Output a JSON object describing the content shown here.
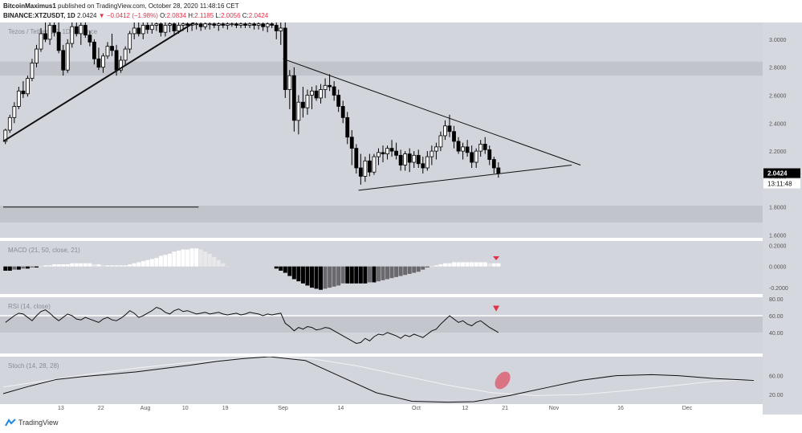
{
  "header": {
    "author": "BitcoinMaximus1",
    "published": " published on TradingView.com, October 28, 2020 11:48:16 CET",
    "symbol": "BINANCE:XTZUSDT, 1D",
    "price": "2.0424",
    "change": "▼ −0.0412 (−1.98%)",
    "ohlc_o_label": "O:",
    "ohlc_o": "2.0834",
    "ohlc_h_label": "H:",
    "ohlc_h": "2.1185",
    "ohlc_l_label": "L:",
    "ohlc_l": "2.0056",
    "ohlc_c_label": "C:",
    "ohlc_c": "2.0424"
  },
  "footer": {
    "brand": "TradingView"
  },
  "colors": {
    "background": "#ffffff",
    "pane": "#d3d5dd",
    "zone": "#c2c4cc",
    "red": "#e0334b",
    "line": "#111111"
  },
  "indicators": {
    "price_label": "Tezos / Tether US, 1D, Binance",
    "macd_label": "MACD (21, 50, close, 21)",
    "rsi_label": "RSI (14, close)",
    "stoch_label": "Stoch (14, 28, 28)"
  },
  "chart_data": [
    {
      "type": "candlestick",
      "title": "Tezos / Tether US, 1D, Binance",
      "ylim": [
        1.58,
        3.12
      ],
      "y_ticks": [
        "3.0000",
        "2.8000",
        "2.6000",
        "2.4000",
        "2.2000",
        "2.0000",
        "1.8000",
        "1.6000"
      ],
      "last_price": "2.0424",
      "countdown": "13:11:48",
      "x_ticks": [
        {
          "label": "13",
          "day": 13
        },
        {
          "label": "22",
          "day": 22
        },
        {
          "label": "Aug",
          "day": 32
        },
        {
          "label": "10",
          "day": 41
        },
        {
          "label": "19",
          "day": 50
        },
        {
          "label": "Sep",
          "day": 63
        },
        {
          "label": "14",
          "day": 76
        },
        {
          "label": "Oct",
          "day": 93
        },
        {
          "label": "12",
          "day": 104
        },
        {
          "label": "21",
          "day": 113
        },
        {
          "label": "Nov",
          "day": 124
        },
        {
          "label": "16",
          "day": 139
        },
        {
          "label": "Dec",
          "day": 154
        }
      ],
      "ohlc": [
        [
          2.27,
          2.36,
          2.25,
          2.35
        ],
        [
          2.35,
          2.46,
          2.33,
          2.44
        ],
        [
          2.44,
          2.55,
          2.4,
          2.52
        ],
        [
          2.52,
          2.66,
          2.5,
          2.63
        ],
        [
          2.63,
          2.7,
          2.58,
          2.61
        ],
        [
          2.61,
          2.74,
          2.59,
          2.72
        ],
        [
          2.72,
          2.86,
          2.7,
          2.83
        ],
        [
          2.83,
          2.96,
          2.8,
          2.93
        ],
        [
          2.93,
          3.08,
          2.91,
          3.04
        ],
        [
          3.04,
          3.12,
          2.98,
          3.0
        ],
        [
          3.0,
          3.12,
          2.96,
          3.1
        ],
        [
          3.1,
          3.12,
          3.02,
          3.05
        ],
        [
          3.05,
          3.12,
          2.9,
          2.92
        ],
        [
          2.92,
          2.96,
          2.74,
          2.78
        ],
        [
          2.78,
          3.0,
          2.76,
          2.97
        ],
        [
          2.97,
          3.12,
          2.94,
          3.09
        ],
        [
          3.09,
          3.12,
          3.02,
          3.04
        ],
        [
          3.04,
          3.12,
          2.96,
          3.1
        ],
        [
          3.1,
          3.12,
          3.01,
          3.03
        ],
        [
          3.03,
          3.06,
          2.95,
          2.98
        ],
        [
          2.98,
          3.0,
          2.82,
          2.86
        ],
        [
          2.86,
          2.94,
          2.78,
          2.8
        ],
        [
          2.8,
          2.9,
          2.76,
          2.88
        ],
        [
          2.88,
          2.98,
          2.86,
          2.95
        ],
        [
          2.95,
          3.04,
          2.88,
          2.92
        ],
        [
          2.92,
          2.96,
          2.74,
          2.78
        ],
        [
          2.78,
          2.88,
          2.76,
          2.85
        ],
        [
          2.85,
          2.95,
          2.82,
          2.93
        ],
        [
          2.93,
          3.06,
          2.9,
          3.04
        ],
        [
          3.04,
          3.12,
          3.0,
          3.08
        ],
        [
          3.08,
          3.12,
          3.02,
          3.04
        ],
        [
          3.04,
          3.12,
          3.0,
          3.1
        ],
        [
          3.1,
          3.12,
          3.04,
          3.07
        ],
        [
          3.07,
          3.12,
          3.04,
          3.1
        ],
        [
          3.1,
          3.12,
          3.06,
          3.11
        ],
        [
          3.11,
          3.12,
          3.02,
          3.05
        ],
        [
          3.05,
          3.12,
          3.02,
          3.1
        ],
        [
          3.1,
          3.12,
          3.05,
          3.11
        ],
        [
          3.11,
          3.12,
          3.03,
          3.06
        ],
        [
          3.06,
          3.12,
          3.04,
          3.1
        ],
        [
          3.1,
          3.12,
          3.06,
          3.11
        ],
        [
          3.11,
          3.12,
          3.05,
          3.1
        ],
        [
          3.1,
          3.12,
          3.06,
          3.11
        ],
        [
          3.11,
          3.12,
          3.07,
          3.11
        ],
        [
          3.11,
          3.12,
          3.06,
          3.09
        ],
        [
          3.09,
          3.12,
          3.07,
          3.11
        ],
        [
          3.11,
          3.12,
          3.07,
          3.11
        ],
        [
          3.11,
          3.12,
          3.08,
          3.1
        ],
        [
          3.1,
          3.12,
          3.06,
          3.11
        ],
        [
          3.11,
          3.12,
          3.08,
          3.1
        ],
        [
          3.1,
          3.12,
          3.07,
          3.11
        ],
        [
          3.11,
          3.12,
          3.09,
          3.11
        ],
        [
          3.11,
          3.12,
          3.08,
          3.1
        ],
        [
          3.1,
          3.12,
          3.08,
          3.11
        ],
        [
          3.11,
          3.12,
          3.08,
          3.1
        ],
        [
          3.1,
          3.12,
          3.08,
          3.11
        ],
        [
          3.11,
          3.12,
          3.07,
          3.1
        ],
        [
          3.1,
          3.12,
          3.07,
          3.11
        ],
        [
          3.11,
          3.12,
          3.06,
          3.09
        ],
        [
          3.09,
          3.12,
          3.05,
          3.11
        ],
        [
          3.11,
          3.12,
          3.08,
          3.1
        ],
        [
          3.1,
          3.12,
          3.0,
          3.06
        ],
        [
          3.06,
          3.12,
          2.96,
          3.08
        ],
        [
          3.08,
          3.12,
          2.58,
          2.64
        ],
        [
          2.64,
          2.78,
          2.5,
          2.74
        ],
        [
          2.74,
          2.8,
          2.34,
          2.42
        ],
        [
          2.42,
          2.6,
          2.32,
          2.55
        ],
        [
          2.55,
          2.66,
          2.44,
          2.51
        ],
        [
          2.51,
          2.64,
          2.46,
          2.6
        ],
        [
          2.6,
          2.66,
          2.5,
          2.63
        ],
        [
          2.63,
          2.67,
          2.56,
          2.58
        ],
        [
          2.58,
          2.68,
          2.54,
          2.64
        ],
        [
          2.64,
          2.72,
          2.58,
          2.67
        ],
        [
          2.67,
          2.75,
          2.63,
          2.66
        ],
        [
          2.66,
          2.7,
          2.56,
          2.6
        ],
        [
          2.6,
          2.64,
          2.48,
          2.52
        ],
        [
          2.52,
          2.56,
          2.4,
          2.44
        ],
        [
          2.44,
          2.48,
          2.25,
          2.3
        ],
        [
          2.3,
          2.35,
          2.1,
          2.22
        ],
        [
          2.22,
          2.25,
          2.04,
          2.08
        ],
        [
          2.08,
          2.18,
          1.96,
          2.02
        ],
        [
          2.02,
          2.16,
          1.98,
          2.13
        ],
        [
          2.13,
          2.18,
          2.02,
          2.05
        ],
        [
          2.05,
          2.18,
          2.03,
          2.16
        ],
        [
          2.16,
          2.22,
          2.1,
          2.19
        ],
        [
          2.19,
          2.24,
          2.12,
          2.18
        ],
        [
          2.18,
          2.24,
          2.14,
          2.22
        ],
        [
          2.22,
          2.28,
          2.16,
          2.2
        ],
        [
          2.2,
          2.26,
          2.14,
          2.17
        ],
        [
          2.17,
          2.21,
          2.06,
          2.1
        ],
        [
          2.1,
          2.2,
          2.06,
          2.18
        ],
        [
          2.18,
          2.22,
          2.05,
          2.12
        ],
        [
          2.12,
          2.2,
          2.08,
          2.17
        ],
        [
          2.17,
          2.21,
          2.08,
          2.11
        ],
        [
          2.11,
          2.16,
          2.04,
          2.08
        ],
        [
          2.08,
          2.2,
          2.06,
          2.16
        ],
        [
          2.16,
          2.24,
          2.1,
          2.2
        ],
        [
          2.2,
          2.26,
          2.14,
          2.23
        ],
        [
          2.23,
          2.34,
          2.2,
          2.31
        ],
        [
          2.31,
          2.42,
          2.28,
          2.38
        ],
        [
          2.38,
          2.46,
          2.3,
          2.34
        ],
        [
          2.34,
          2.38,
          2.22,
          2.27
        ],
        [
          2.27,
          2.3,
          2.18,
          2.2
        ],
        [
          2.2,
          2.26,
          2.14,
          2.23
        ],
        [
          2.23,
          2.28,
          2.16,
          2.19
        ],
        [
          2.19,
          2.24,
          2.08,
          2.12
        ],
        [
          2.12,
          2.22,
          2.08,
          2.2
        ],
        [
          2.2,
          2.28,
          2.16,
          2.25
        ],
        [
          2.25,
          2.3,
          2.18,
          2.21
        ],
        [
          2.21,
          2.24,
          2.1,
          2.14
        ],
        [
          2.14,
          2.16,
          2.04,
          2.08
        ],
        [
          2.08,
          2.12,
          2.01,
          2.04
        ]
      ],
      "resistance_line": {
        "from": [
          0,
          2.27
        ],
        "to": [
          43,
          3.12
        ]
      },
      "triangle_upper": {
        "from": [
          63,
          2.86
        ],
        "to": [
          130,
          2.1
        ]
      },
      "triangle_lower": {
        "from": [
          80,
          1.92
        ],
        "to": [
          128,
          2.1
        ]
      },
      "horizontal_zone_top": {
        "from": 2.84,
        "to": 2.74
      },
      "horizontal_zone_bottom": {
        "from": 1.81,
        "to": 1.69
      },
      "support_segment": {
        "y": 1.8,
        "to_day": 44
      }
    },
    {
      "type": "bar",
      "title": "MACD (21, 50, close, 21)",
      "y_ticks": [
        "0.2000",
        "0.0000",
        "-0.2000"
      ],
      "ylim": [
        -0.26,
        0.24
      ],
      "histogram": [
        -0.04,
        -0.04,
        -0.03,
        -0.03,
        -0.02,
        -0.02,
        -0.01,
        -0.01,
        0.0,
        0.01,
        0.01,
        0.02,
        0.02,
        0.02,
        0.02,
        0.03,
        0.03,
        0.03,
        0.03,
        0.03,
        0.02,
        0.02,
        0.01,
        0.01,
        0.01,
        0.01,
        0.01,
        0.01,
        0.02,
        0.03,
        0.04,
        0.05,
        0.06,
        0.07,
        0.08,
        0.1,
        0.11,
        0.12,
        0.14,
        0.15,
        0.16,
        0.16,
        0.17,
        0.17,
        0.16,
        0.14,
        0.12,
        0.09,
        0.06,
        0.03,
        0.0,
        null,
        null,
        null,
        null,
        null,
        null,
        null,
        null,
        null,
        null,
        -0.02,
        -0.04,
        -0.06,
        -0.09,
        -0.12,
        -0.14,
        -0.16,
        -0.18,
        -0.2,
        -0.21,
        -0.22,
        -0.21,
        -0.2,
        -0.19,
        -0.18,
        -0.16,
        -0.16,
        -0.16,
        -0.16,
        -0.16,
        -0.16,
        -0.15,
        -0.15,
        -0.14,
        -0.13,
        -0.12,
        -0.11,
        -0.1,
        -0.09,
        -0.08,
        -0.07,
        -0.06,
        -0.05,
        -0.03,
        -0.01,
        0.0,
        0.01,
        0.02,
        0.03,
        0.03,
        0.04,
        0.04,
        0.04,
        0.04,
        0.04,
        0.04,
        0.04,
        0.04,
        0.03,
        0.03,
        0.03
      ],
      "marker_day": 111
    },
    {
      "type": "line",
      "title": "RSI (14, close)",
      "y_ticks": [
        "80.00",
        "60.00",
        "40.00"
      ],
      "ylim": [
        15,
        82
      ],
      "band": [
        60,
        40
      ],
      "values": [
        52,
        56,
        60,
        63,
        62,
        58,
        54,
        60,
        65,
        67,
        63,
        58,
        54,
        58,
        62,
        60,
        56,
        55,
        58,
        56,
        54,
        52,
        56,
        58,
        55,
        54,
        57,
        61,
        66,
        63,
        58,
        60,
        63,
        66,
        70,
        68,
        64,
        62,
        66,
        68,
        65,
        66,
        64,
        62,
        63,
        64,
        62,
        63,
        64,
        62,
        61,
        62,
        63,
        61,
        62,
        64,
        63,
        62,
        60,
        62,
        61,
        62,
        63,
        51,
        47,
        42,
        46,
        44,
        47,
        46,
        43,
        44,
        46,
        45,
        42,
        39,
        36,
        33,
        30,
        27,
        28,
        33,
        30,
        35,
        38,
        37,
        40,
        38,
        36,
        33,
        37,
        35,
        38,
        36,
        34,
        38,
        42,
        44,
        50,
        55,
        60,
        56,
        52,
        54,
        50,
        48,
        52,
        54,
        50,
        46,
        43,
        40
      ],
      "marker_day": 111
    },
    {
      "type": "line",
      "title": "Stoch (14, 28, 28)",
      "y_ticks": [
        "60.00",
        "20.00"
      ],
      "ylim": [
        0,
        100
      ],
      "k": [
        [
          0,
          22
        ],
        [
          6,
          38
        ],
        [
          12,
          52
        ],
        [
          18,
          58
        ],
        [
          24,
          63
        ],
        [
          30,
          68
        ],
        [
          36,
          75
        ],
        [
          42,
          82
        ],
        [
          48,
          90
        ],
        [
          54,
          96
        ],
        [
          60,
          100
        ],
        [
          68,
          92
        ],
        [
          76,
          58
        ],
        [
          84,
          24
        ],
        [
          92,
          6
        ],
        [
          100,
          4
        ],
        [
          106,
          5
        ],
        [
          114,
          18
        ],
        [
          122,
          34
        ],
        [
          130,
          50
        ],
        [
          138,
          60
        ],
        [
          146,
          62
        ],
        [
          152,
          60
        ],
        [
          160,
          54
        ],
        [
          169,
          50
        ]
      ],
      "d": [
        [
          0,
          36
        ],
        [
          10,
          50
        ],
        [
          20,
          64
        ],
        [
          30,
          76
        ],
        [
          40,
          86
        ],
        [
          50,
          94
        ],
        [
          60,
          100
        ],
        [
          70,
          95
        ],
        [
          80,
          80
        ],
        [
          90,
          60
        ],
        [
          100,
          40
        ],
        [
          110,
          24
        ],
        [
          120,
          18
        ],
        [
          130,
          20
        ],
        [
          140,
          28
        ],
        [
          150,
          38
        ],
        [
          160,
          48
        ],
        [
          169,
          52
        ]
      ],
      "highlight_day": 111
    }
  ]
}
